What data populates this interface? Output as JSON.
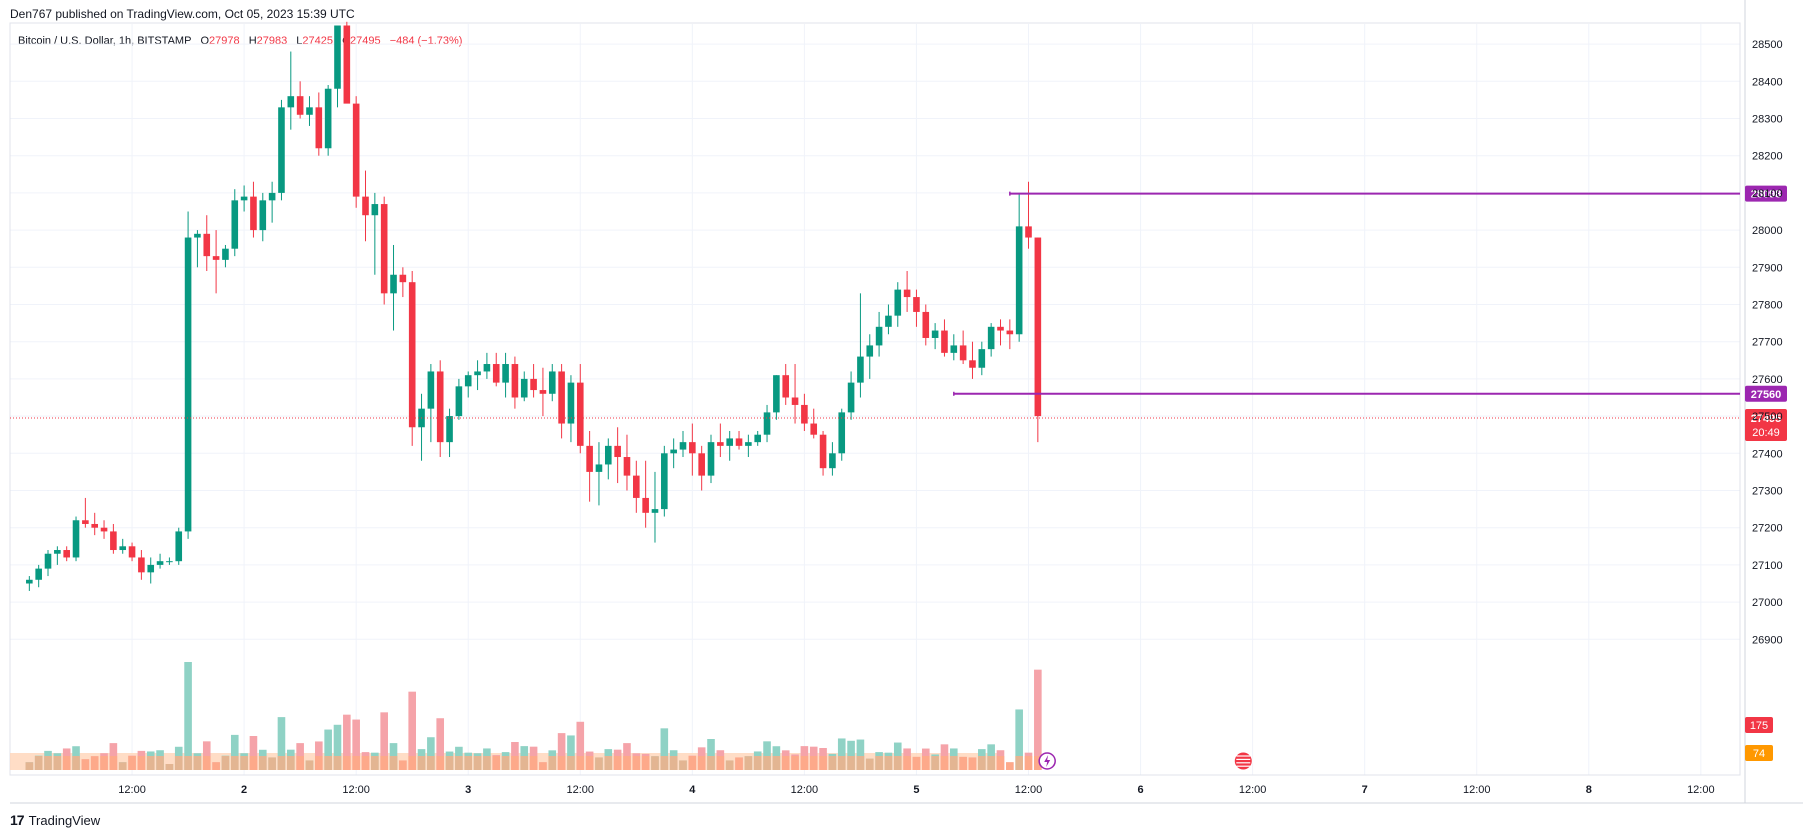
{
  "publisher_line": "Den767 published on TradingView.com, Oct 05, 2023 15:39 UTC",
  "brand": "TradingView",
  "brand_logo": "17",
  "legend": {
    "symbol": "Bitcoin / U.S. Dollar, 1h, BITSTAMP",
    "o_key": "O",
    "o_val": "27978",
    "h_key": "H",
    "h_val": "27983",
    "l_key": "L",
    "l_val": "27425",
    "c_key": "C",
    "c_val": "27495",
    "change": "−484 (−1.73%)"
  },
  "chart_data": {
    "type": "candlestick",
    "title": "Bitcoin / U.S. Dollar, 1h, BITSTAMP",
    "ylim": [
      26900,
      28550
    ],
    "y_ticks": [
      28500,
      28400,
      28300,
      28200,
      28100,
      28000,
      27900,
      27800,
      27700,
      27600,
      27500,
      27400,
      27300,
      27200,
      27100,
      27000,
      26900
    ],
    "x_ticks": [
      "12:00",
      "2",
      "12:00",
      "3",
      "12:00",
      "4",
      "12:00",
      "5",
      "12:00",
      "6",
      "12:00",
      "7",
      "12:00",
      "8",
      "12:00"
    ],
    "x_tick_hours": [
      12,
      24,
      36,
      48,
      60,
      72,
      84,
      96,
      108,
      120,
      132,
      144,
      156,
      168,
      180
    ],
    "horizontal_levels": [
      {
        "value": 28098,
        "label": "28098",
        "start_hour": 106,
        "color": "#9c27b0"
      },
      {
        "value": 27560,
        "label": "27560",
        "start_hour": 100,
        "color": "#9c27b0"
      }
    ],
    "last_price": {
      "value": 27495,
      "label": "27495",
      "countdown": "20:49",
      "color": "#f23645"
    },
    "volume_badges": [
      {
        "label": "175",
        "color": "#f23645"
      },
      {
        "label": "74",
        "color": "#ff9800"
      }
    ],
    "start_hour": 1,
    "ohlc": [
      [
        27050,
        27070,
        27030,
        27060
      ],
      [
        27060,
        27100,
        27040,
        27090
      ],
      [
        27090,
        27140,
        27070,
        27130
      ],
      [
        27130,
        27150,
        27100,
        27140
      ],
      [
        27140,
        27150,
        27110,
        27120
      ],
      [
        27120,
        27230,
        27110,
        27220
      ],
      [
        27220,
        27280,
        27200,
        27210
      ],
      [
        27210,
        27240,
        27180,
        27200
      ],
      [
        27200,
        27220,
        27170,
        27190
      ],
      [
        27190,
        27210,
        27130,
        27140
      ],
      [
        27140,
        27170,
        27130,
        27150
      ],
      [
        27150,
        27160,
        27110,
        27120
      ],
      [
        27120,
        27140,
        27060,
        27080
      ],
      [
        27080,
        27120,
        27050,
        27100
      ],
      [
        27100,
        27130,
        27090,
        27110
      ],
      [
        27110,
        27120,
        27100,
        27110
      ],
      [
        27110,
        27200,
        27100,
        27190
      ],
      [
        27190,
        28050,
        27170,
        27980
      ],
      [
        27980,
        28000,
        27900,
        27990
      ],
      [
        27990,
        28040,
        27890,
        27930
      ],
      [
        27930,
        28000,
        27830,
        27920
      ],
      [
        27920,
        27960,
        27900,
        27950
      ],
      [
        27950,
        28110,
        27930,
        28080
      ],
      [
        28080,
        28120,
        28050,
        28090
      ],
      [
        28090,
        28130,
        27980,
        28000
      ],
      [
        28000,
        28100,
        27970,
        28080
      ],
      [
        28080,
        28130,
        28020,
        28100
      ],
      [
        28100,
        28350,
        28080,
        28330
      ],
      [
        28330,
        28480,
        28270,
        28360
      ],
      [
        28360,
        28400,
        28300,
        28310
      ],
      [
        28310,
        28360,
        28280,
        28330
      ],
      [
        28330,
        28370,
        28200,
        28220
      ],
      [
        28220,
        28390,
        28200,
        28380
      ],
      [
        28380,
        28550,
        28330,
        28550
      ],
      [
        28550,
        28560,
        28350,
        28340
      ],
      [
        28340,
        28360,
        28060,
        28090
      ],
      [
        28090,
        28160,
        27970,
        28040
      ],
      [
        28040,
        28100,
        27880,
        28070
      ],
      [
        28070,
        28090,
        27800,
        27830
      ],
      [
        27830,
        27960,
        27730,
        27880
      ],
      [
        27880,
        27900,
        27820,
        27860
      ],
      [
        27860,
        27890,
        27420,
        27470
      ],
      [
        27470,
        27560,
        27380,
        27520
      ],
      [
        27520,
        27640,
        27430,
        27620
      ],
      [
        27620,
        27650,
        27390,
        27430
      ],
      [
        27430,
        27520,
        27390,
        27500
      ],
      [
        27500,
        27600,
        27490,
        27580
      ],
      [
        27580,
        27620,
        27550,
        27610
      ],
      [
        27610,
        27650,
        27570,
        27620
      ],
      [
        27620,
        27670,
        27600,
        27640
      ],
      [
        27640,
        27670,
        27580,
        27590
      ],
      [
        27590,
        27670,
        27550,
        27640
      ],
      [
        27640,
        27660,
        27520,
        27550
      ],
      [
        27550,
        27620,
        27540,
        27600
      ],
      [
        27600,
        27640,
        27550,
        27570
      ],
      [
        27570,
        27630,
        27500,
        27560
      ],
      [
        27560,
        27640,
        27540,
        27620
      ],
      [
        27620,
        27640,
        27440,
        27480
      ],
      [
        27480,
        27610,
        27430,
        27590
      ],
      [
        27590,
        27640,
        27400,
        27420
      ],
      [
        27420,
        27460,
        27270,
        27350
      ],
      [
        27350,
        27430,
        27260,
        27370
      ],
      [
        27370,
        27440,
        27330,
        27420
      ],
      [
        27420,
        27470,
        27320,
        27390
      ],
      [
        27390,
        27450,
        27300,
        27340
      ],
      [
        27340,
        27380,
        27240,
        27280
      ],
      [
        27280,
        27380,
        27200,
        27240
      ],
      [
        27240,
        27350,
        27160,
        27250
      ],
      [
        27250,
        27420,
        27230,
        27400
      ],
      [
        27400,
        27440,
        27360,
        27410
      ],
      [
        27410,
        27460,
        27390,
        27430
      ],
      [
        27430,
        27480,
        27340,
        27400
      ],
      [
        27400,
        27420,
        27300,
        27340
      ],
      [
        27340,
        27450,
        27320,
        27430
      ],
      [
        27430,
        27480,
        27390,
        27420
      ],
      [
        27420,
        27460,
        27380,
        27440
      ],
      [
        27440,
        27460,
        27410,
        27420
      ],
      [
        27420,
        27450,
        27390,
        27430
      ],
      [
        27430,
        27460,
        27420,
        27450
      ],
      [
        27450,
        27530,
        27430,
        27510
      ],
      [
        27510,
        27610,
        27490,
        27610
      ],
      [
        27610,
        27640,
        27530,
        27550
      ],
      [
        27550,
        27640,
        27480,
        27530
      ],
      [
        27530,
        27560,
        27460,
        27480
      ],
      [
        27480,
        27520,
        27440,
        27450
      ],
      [
        27450,
        27460,
        27340,
        27360
      ],
      [
        27360,
        27430,
        27340,
        27400
      ],
      [
        27400,
        27520,
        27380,
        27510
      ],
      [
        27510,
        27620,
        27490,
        27590
      ],
      [
        27590,
        27830,
        27550,
        27660
      ],
      [
        27660,
        27720,
        27600,
        27690
      ],
      [
        27690,
        27780,
        27660,
        27740
      ],
      [
        27740,
        27800,
        27720,
        27770
      ],
      [
        27770,
        27860,
        27740,
        27840
      ],
      [
        27840,
        27890,
        27780,
        27820
      ],
      [
        27820,
        27840,
        27740,
        27780
      ],
      [
        27780,
        27800,
        27690,
        27710
      ],
      [
        27710,
        27750,
        27680,
        27730
      ],
      [
        27730,
        27760,
        27660,
        27670
      ],
      [
        27670,
        27720,
        27650,
        27690
      ],
      [
        27690,
        27730,
        27640,
        27650
      ],
      [
        27650,
        27700,
        27600,
        27630
      ],
      [
        27630,
        27700,
        27610,
        27680
      ],
      [
        27680,
        27750,
        27660,
        27740
      ],
      [
        27740,
        27760,
        27690,
        27730
      ],
      [
        27730,
        27760,
        27680,
        27720
      ],
      [
        27720,
        28100,
        27700,
        28010
      ],
      [
        28010,
        28130,
        27950,
        27980
      ],
      [
        27980,
        27980,
        27430,
        27500
      ]
    ],
    "volume_colors": {
      "up": "#8fd2c5",
      "down": "#f5a3a9",
      "ma_fill": "#ffd5b8",
      "ma_bar": "#ffab80"
    }
  }
}
